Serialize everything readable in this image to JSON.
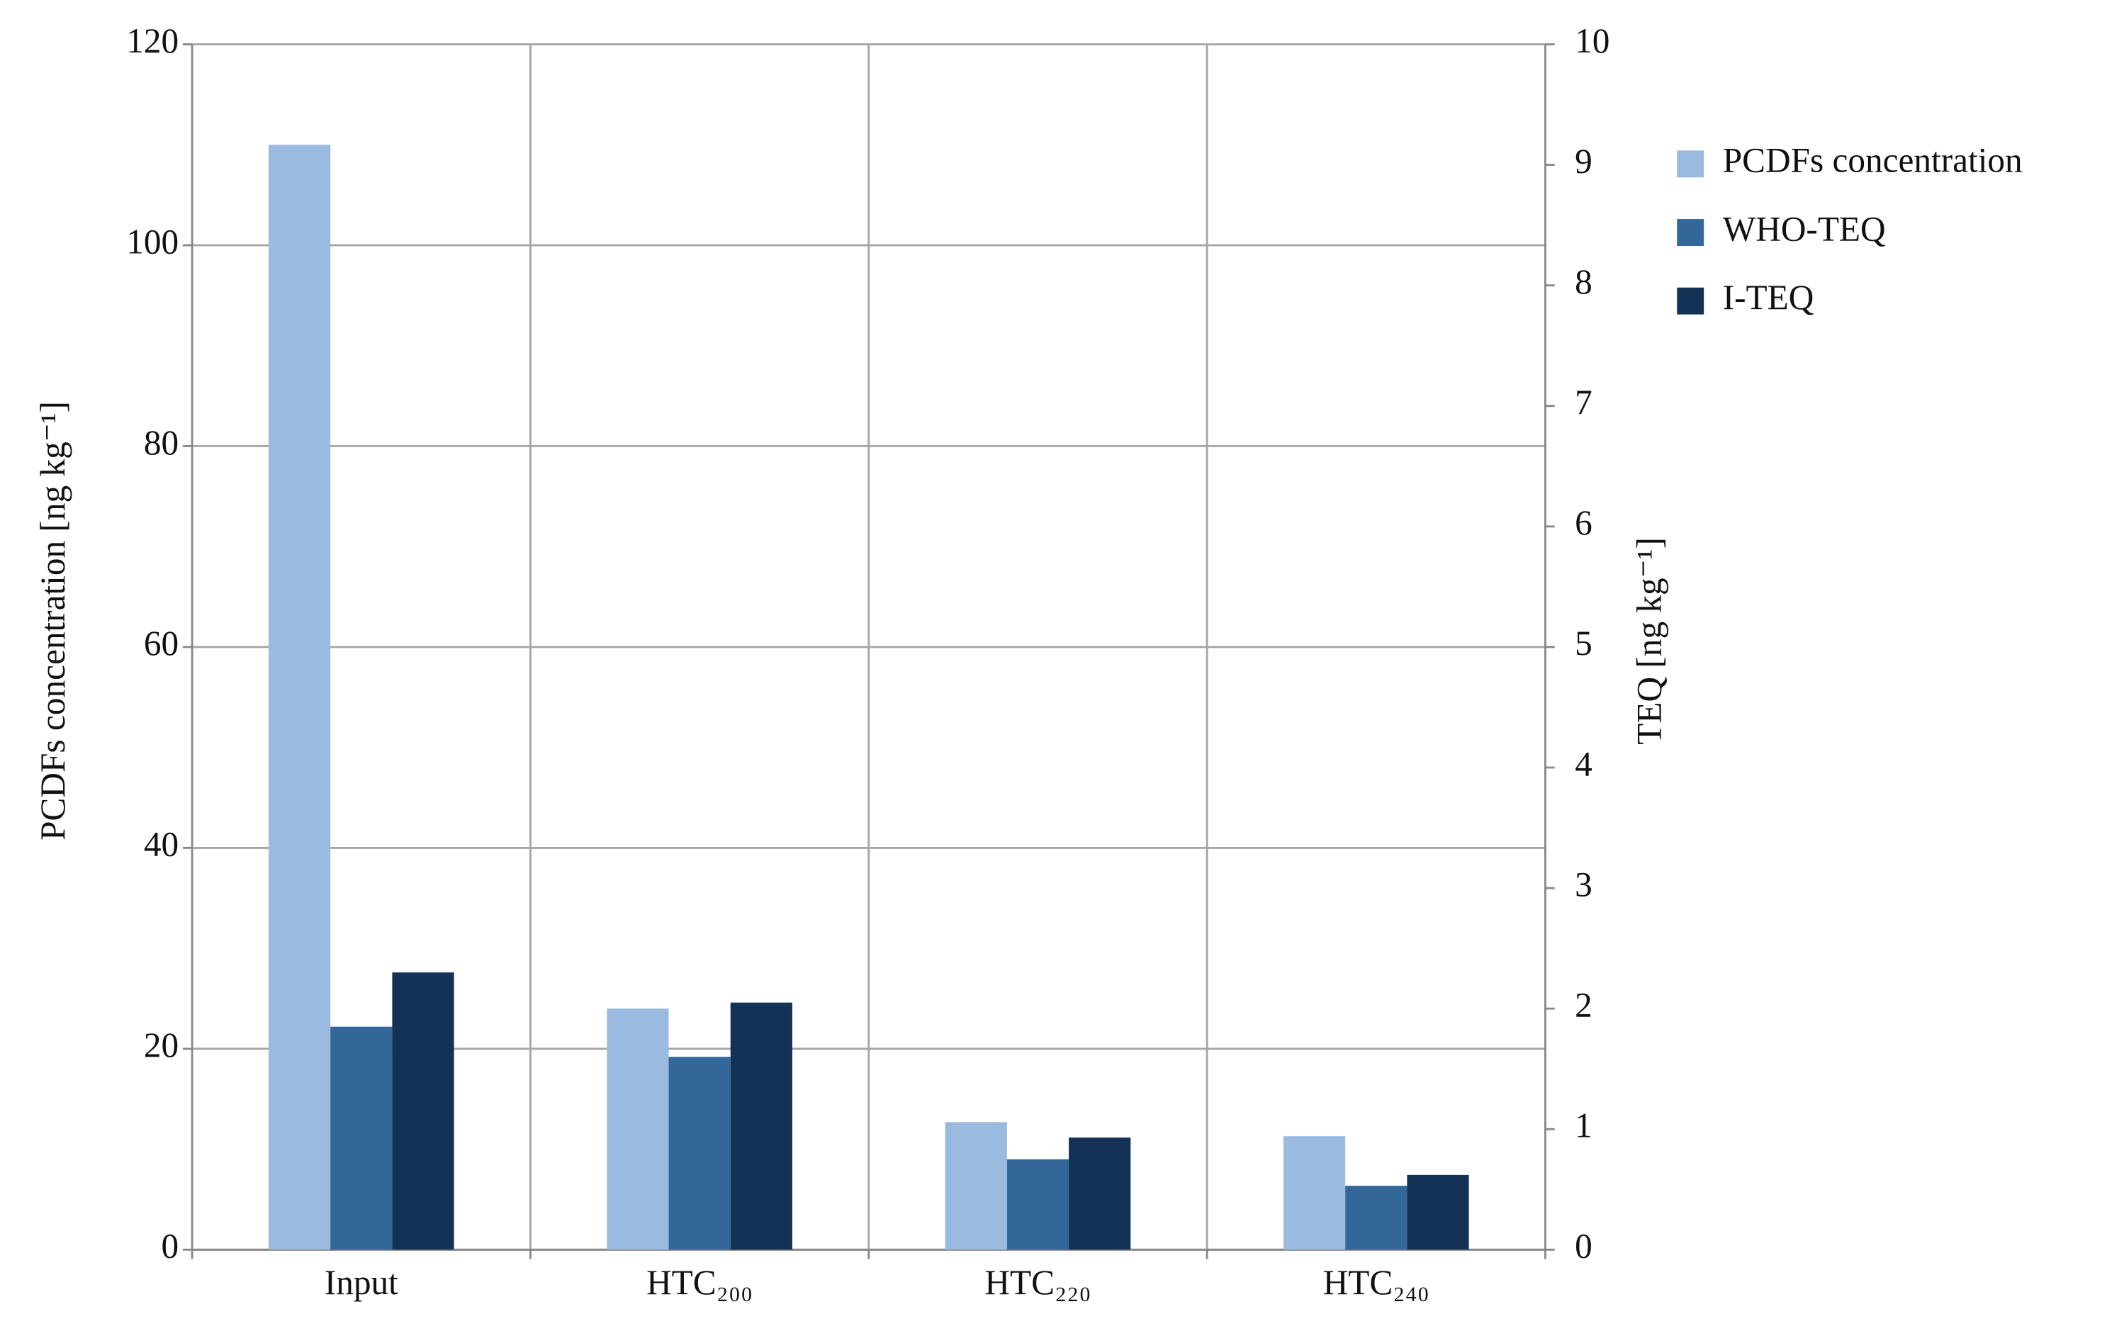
{
  "chart_data": {
    "type": "bar",
    "categories": [
      "Input",
      "HTC₂₀₀",
      "HTC₂₂₀",
      "HTC₂₄₀"
    ],
    "series": [
      {
        "name": "PCDFs concentration",
        "color": "#9bbadf",
        "values": [
          110,
          24,
          12.7,
          11.3
        ]
      },
      {
        "name": "WHO-TEQ",
        "color": "#336699",
        "axis": "y2",
        "values": [
          1.85,
          1.6,
          0.75,
          0.53
        ]
      },
      {
        "name": "I-TEQ",
        "color": "#133256",
        "axis": "y2",
        "values": [
          2.3,
          2.05,
          0.93,
          0.62
        ]
      }
    ],
    "y_label": "PCDFs concentration [ng kg⁻¹]",
    "y2_label": "TEQ [ng kg⁻¹]",
    "ylim": [
      0,
      120
    ],
    "yticks": [
      0,
      20,
      40,
      60,
      80,
      100,
      120
    ],
    "y2lim": [
      0,
      10
    ],
    "y2ticks": [
      0,
      1,
      2,
      3,
      4,
      5,
      6,
      7,
      8,
      9,
      10
    ],
    "grid": true,
    "legend": "right"
  }
}
